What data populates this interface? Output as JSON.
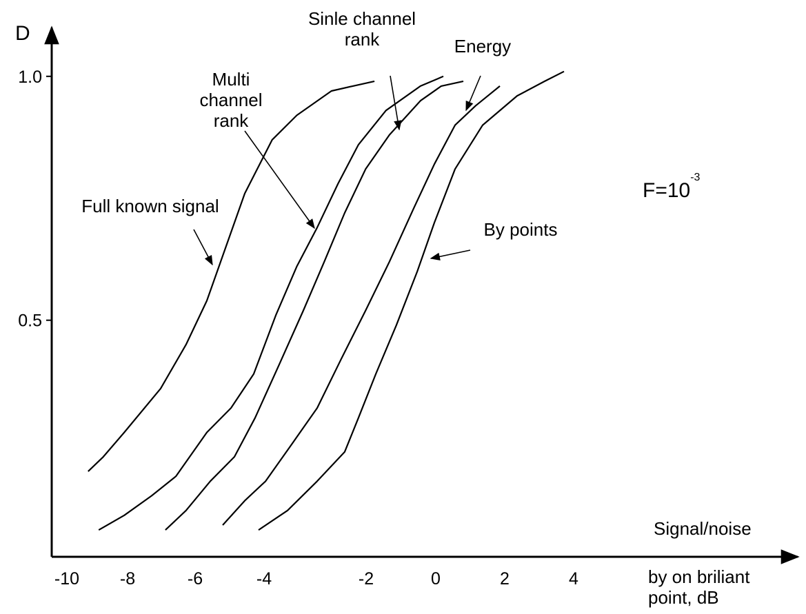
{
  "chart_data": {
    "type": "line",
    "ylabel": "D",
    "xlabel": "Signal/noise",
    "xlabel_note": "by on briliant point, dB",
    "annotation": {
      "text": "F=10",
      "superscript": "-3"
    },
    "xlim": [
      -10.5,
      10.5
    ],
    "xticks": [
      -10,
      -8,
      -6,
      -4,
      -2,
      0,
      2,
      4
    ],
    "ylim": [
      0.015,
      1.1
    ],
    "yticks": [
      0.5,
      {
        "value": 1,
        "label": "1.0"
      }
    ],
    "color": "#000000",
    "series": [
      {
        "name": "Full known signal",
        "x": [
          -9.3,
          -8.8,
          -8.11,
          -7.02,
          -6.27,
          -5.66,
          -5.26,
          -4.56,
          -3.84,
          -3.36,
          -2.68,
          -2.26,
          -1.76
        ],
        "values": [
          0.19,
          0.22,
          0.27,
          0.36,
          0.45,
          0.54,
          0.62,
          0.76,
          0.87,
          0.92,
          0.97,
          0.98,
          0.99
        ]
      },
      {
        "name": "Multi channel rank",
        "x": [
          -8.95,
          -8.11,
          -7.29,
          -6.57,
          -5.66,
          -4.96,
          -4.3,
          -3.77,
          -3.36,
          -2.96,
          -2.55,
          -2.15,
          -1.43,
          -0.44,
          0.22
        ],
        "values": [
          0.07,
          0.1,
          0.14,
          0.18,
          0.27,
          0.32,
          0.39,
          0.51,
          0.61,
          0.69,
          0.78,
          0.86,
          0.93,
          0.98,
          1.0
        ]
      },
      {
        "name": "Sinle channel rank",
        "x": [
          -6.88,
          -6.27,
          -5.56,
          -4.86,
          -4.26,
          -3.7,
          -3.23,
          -2.82,
          -2.42,
          -2.01,
          -1.33,
          -0.44,
          0.16,
          0.8
        ],
        "values": [
          0.07,
          0.11,
          0.17,
          0.22,
          0.3,
          0.41,
          0.52,
          0.62,
          0.72,
          0.81,
          0.88,
          0.95,
          0.98,
          0.99
        ]
      },
      {
        "name": "Energy",
        "x": [
          -5.2,
          -4.56,
          -3.97,
          -3.43,
          -2.96,
          -2.49,
          -2.01,
          -1.33,
          -0.63,
          -0.04,
          0.56,
          1.16,
          1.86
        ],
        "values": [
          0.08,
          0.13,
          0.17,
          0.25,
          0.32,
          0.42,
          0.52,
          0.62,
          0.73,
          0.82,
          0.9,
          0.94,
          0.98
        ]
      },
      {
        "name": "By points",
        "x": [
          -4.16,
          -3.54,
          -2.96,
          -2.42,
          -2.15,
          -1.72,
          -1.13,
          -0.53,
          -0.04,
          0.56,
          1.36,
          2.36,
          3.16,
          3.72
        ],
        "values": [
          0.07,
          0.11,
          0.17,
          0.23,
          0.3,
          0.39,
          0.49,
          0.6,
          0.7,
          0.81,
          0.9,
          0.96,
          0.99,
          1.01
        ]
      }
    ]
  }
}
